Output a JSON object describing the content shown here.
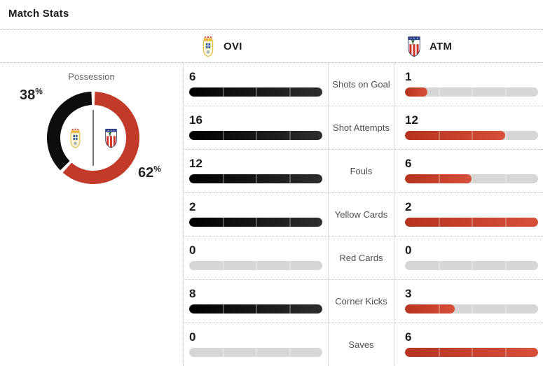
{
  "title": "Match Stats",
  "teams": {
    "home": {
      "abbr": "OVI"
    },
    "away": {
      "abbr": "ATM"
    }
  },
  "possession": {
    "label": "Possession",
    "home_pct": 38,
    "away_pct": 62,
    "unit": "%"
  },
  "stats": {
    "rows": [
      {
        "label": "Shots on Goal",
        "home": 6,
        "away": 1
      },
      {
        "label": "Shot Attempts",
        "home": 16,
        "away": 12
      },
      {
        "label": "Fouls",
        "home": 12,
        "away": 6
      },
      {
        "label": "Yellow Cards",
        "home": 2,
        "away": 2
      },
      {
        "label": "Red Cards",
        "home": 0,
        "away": 0
      },
      {
        "label": "Corner Kicks",
        "home": 8,
        "away": 3
      },
      {
        "label": "Saves",
        "home": 0,
        "away": 6
      }
    ]
  },
  "colors": {
    "home_fill_start": "#000000",
    "home_fill_end": "#2e2e2e",
    "away_fill_start": "#b5331f",
    "away_fill_end": "#d6503a",
    "track": "#d6d6d6",
    "home_donut": "#0d0d0d",
    "away_donut": "#c23b2a"
  },
  "chart_data": [
    {
      "type": "pie",
      "style": "donut",
      "title": "Possession",
      "labels": [
        "OVI",
        "ATM"
      ],
      "values": [
        38,
        62
      ],
      "colors": [
        "#0d0d0d",
        "#c23b2a"
      ],
      "annotations": [
        "38%",
        "62%"
      ],
      "legend_position": "inside-center-crests"
    },
    {
      "type": "bar",
      "orientation": "horizontal",
      "title": "Match Stats",
      "categories": [
        "Shots on Goal",
        "Shot Attempts",
        "Fouls",
        "Yellow Cards",
        "Red Cards",
        "Corner Kicks",
        "Saves"
      ],
      "series": [
        {
          "name": "OVI",
          "values": [
            6,
            16,
            12,
            2,
            0,
            8,
            0
          ]
        },
        {
          "name": "ATM",
          "values": [
            1,
            12,
            6,
            2,
            0,
            3,
            6
          ]
        }
      ],
      "scale": "each row scaled to the larger of the two values",
      "grid": false
    }
  ]
}
